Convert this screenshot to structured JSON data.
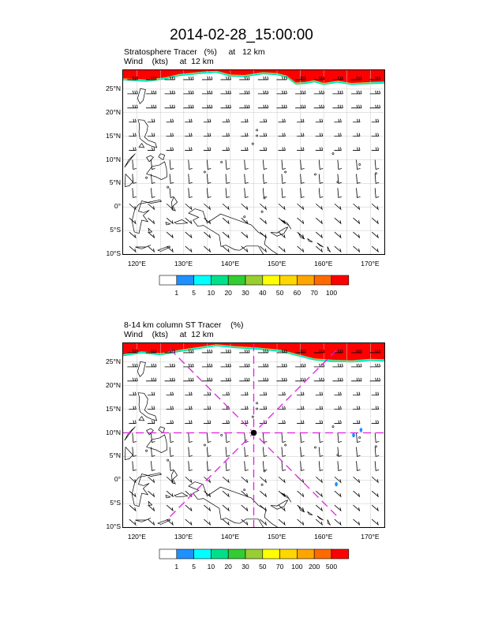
{
  "title": "2014-02-28_15:00:00",
  "panels": [
    {
      "line1": "Stratosphere Tracer   (%)     at   12 km",
      "line2": "Wind    (kts)     at  12 km",
      "colorbar": {
        "labels": [
          "1",
          "5",
          "10",
          "20",
          "30",
          "40",
          "50",
          "60",
          "70",
          "100"
        ],
        "colors": [
          "#ffffff",
          "#1e90ff",
          "#00ffff",
          "#00e08a",
          "#33cc33",
          "#9acd32",
          "#ffff00",
          "#ffd700",
          "#ffa500",
          "#ff6a00",
          "#ff0000"
        ]
      },
      "show_crosshair": false
    },
    {
      "line1": "8-14 km column ST Tracer    (%)",
      "line2": "Wind    (kts)     at  12 km",
      "colorbar": {
        "labels": [
          "1",
          "5",
          "10",
          "20",
          "30",
          "50",
          "70",
          "100",
          "200",
          "500"
        ],
        "colors": [
          "#ffffff",
          "#1e90ff",
          "#00ffff",
          "#00e08a",
          "#33cc33",
          "#9acd32",
          "#ffff00",
          "#ffd700",
          "#ffa500",
          "#ff6a00",
          "#ff0000"
        ]
      },
      "show_crosshair": true
    }
  ],
  "axes": {
    "lat_labels": [
      "25°N",
      "20°N",
      "15°N",
      "10°N",
      "5°N",
      "0°",
      "5°S",
      "10°S"
    ],
    "lon_labels": [
      "120°E",
      "130°E",
      "140°E",
      "150°E",
      "160°E",
      "170°E"
    ]
  },
  "map_extent": {
    "lon_min": 117,
    "lon_max": 173,
    "lat_min": -10,
    "lat_max": 29
  },
  "crosshair_center": {
    "lon": 145,
    "lat": 10
  },
  "colors": {
    "tracer_red": "#ff0000",
    "crosshair": "#e020e0",
    "grid": "#c8c8c8"
  }
}
